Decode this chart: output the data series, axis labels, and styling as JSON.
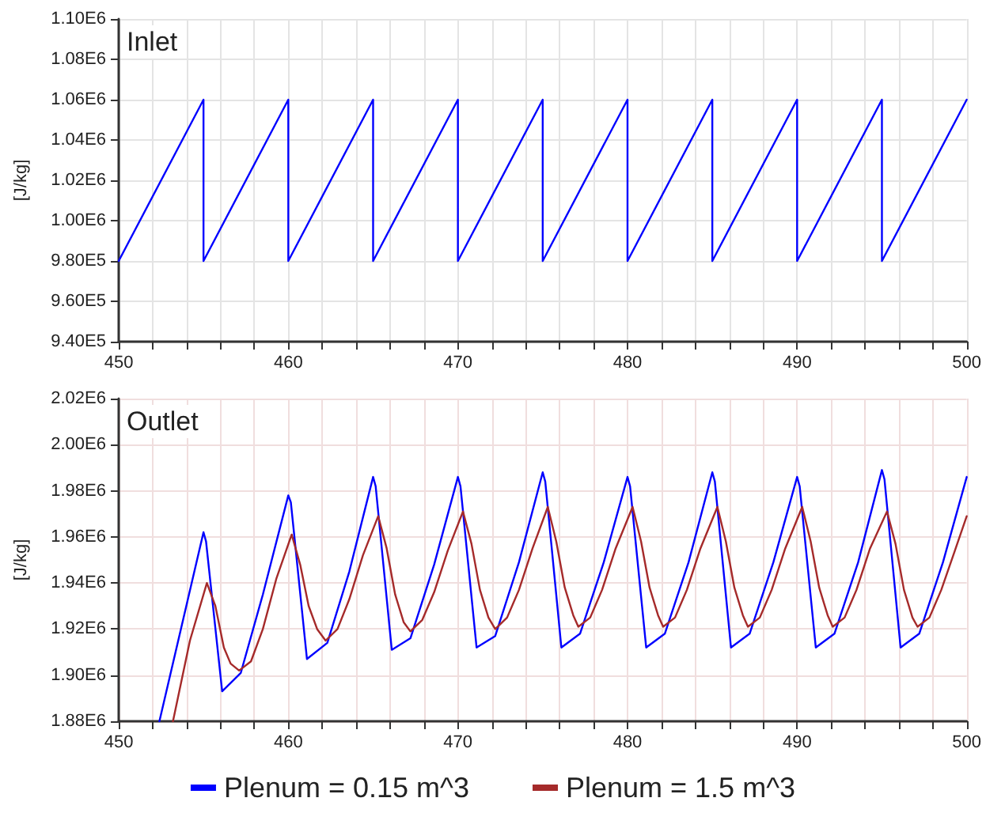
{
  "chart_data": [
    {
      "type": "line",
      "title": "Inlet",
      "ylabel": "[J/kg]",
      "xlim": [
        450,
        500
      ],
      "ylim": [
        940000,
        1100000
      ],
      "xticks": [
        450,
        {
          "value": 452,
          "label": null
        },
        {
          "value": 454,
          "label": null
        },
        {
          "value": 456,
          "label": null
        },
        {
          "value": 458,
          "label": null
        },
        460,
        {
          "value": 462,
          "label": null
        },
        {
          "value": 464,
          "label": null
        },
        {
          "value": 466,
          "label": null
        },
        {
          "value": 468,
          "label": null
        },
        470,
        {
          "value": 472,
          "label": null
        },
        {
          "value": 474,
          "label": null
        },
        {
          "value": 476,
          "label": null
        },
        {
          "value": 478,
          "label": null
        },
        480,
        {
          "value": 482,
          "label": null
        },
        {
          "value": 484,
          "label": null
        },
        {
          "value": 486,
          "label": null
        },
        {
          "value": 488,
          "label": null
        },
        490,
        {
          "value": 492,
          "label": null
        },
        {
          "value": 494,
          "label": null
        },
        {
          "value": 496,
          "label": null
        },
        {
          "value": 498,
          "label": null
        },
        500
      ],
      "yticks": [
        {
          "value": 940000,
          "label": "9.40E5"
        },
        {
          "value": 960000,
          "label": "9.60E5"
        },
        {
          "value": 980000,
          "label": "9.80E5"
        },
        {
          "value": 1000000,
          "label": "1.00E6"
        },
        {
          "value": 1020000,
          "label": "1.02E6"
        },
        {
          "value": 1040000,
          "label": "1.04E6"
        },
        {
          "value": 1060000,
          "label": "1.06E6"
        },
        {
          "value": 1080000,
          "label": "1.08E6"
        },
        {
          "value": 1100000,
          "label": "1.10E6"
        }
      ],
      "grid": true,
      "series": [
        {
          "color": "#0000ff",
          "x": [
            450,
            455,
            455,
            460,
            460,
            465,
            465,
            470,
            470,
            475,
            475,
            480,
            480,
            485,
            485,
            490,
            490,
            495,
            495,
            500
          ],
          "values": [
            980000,
            1060000,
            980000,
            1060000,
            980000,
            1060000,
            980000,
            1060000,
            980000,
            1060000,
            980000,
            1060000,
            980000,
            1060000,
            980000,
            1060000,
            980000,
            1060000,
            980000,
            1060000
          ]
        }
      ]
    },
    {
      "type": "line",
      "title": "Outlet",
      "ylabel": "[J/kg]",
      "xlim": [
        450,
        500
      ],
      "ylim": [
        1880000,
        2020000
      ],
      "xticks": [
        450,
        {
          "value": 452,
          "label": null
        },
        {
          "value": 454,
          "label": null
        },
        {
          "value": 456,
          "label": null
        },
        {
          "value": 458,
          "label": null
        },
        460,
        {
          "value": 462,
          "label": null
        },
        {
          "value": 464,
          "label": null
        },
        {
          "value": 466,
          "label": null
        },
        {
          "value": 468,
          "label": null
        },
        470,
        {
          "value": 472,
          "label": null
        },
        {
          "value": 474,
          "label": null
        },
        {
          "value": 476,
          "label": null
        },
        {
          "value": 478,
          "label": null
        },
        480,
        {
          "value": 482,
          "label": null
        },
        {
          "value": 484,
          "label": null
        },
        {
          "value": 486,
          "label": null
        },
        {
          "value": 488,
          "label": null
        },
        490,
        {
          "value": 492,
          "label": null
        },
        {
          "value": 494,
          "label": null
        },
        {
          "value": 496,
          "label": null
        },
        {
          "value": 498,
          "label": null
        },
        500
      ],
      "yticks": [
        {
          "value": 1880000,
          "label": "1.88E6"
        },
        {
          "value": 1900000,
          "label": "1.90E6"
        },
        {
          "value": 1920000,
          "label": "1.92E6"
        },
        {
          "value": 1940000,
          "label": "1.94E6"
        },
        {
          "value": 1960000,
          "label": "1.96E6"
        },
        {
          "value": 1980000,
          "label": "1.98E6"
        },
        {
          "value": 2000000,
          "label": "2.00E6"
        },
        {
          "value": 2020000,
          "label": "2.02E6"
        }
      ],
      "grid": true,
      "legend": "bottom",
      "series": [
        {
          "name": "Plenum = 0.15 m^3",
          "color": "#0000ff",
          "x": [
            452.4,
            455,
            455.15,
            456.1,
            457.2,
            458.5,
            460,
            460.15,
            461.1,
            462.3,
            463.6,
            465,
            465.15,
            466.1,
            467.2,
            468.6,
            470,
            470.15,
            471.1,
            472.2,
            473.6,
            475,
            475.15,
            476.1,
            477.2,
            478.6,
            480,
            480.15,
            481.1,
            482.2,
            483.6,
            485,
            485.15,
            486.1,
            487.2,
            488.6,
            490,
            490.15,
            491.1,
            492.2,
            493.6,
            495,
            495.15,
            496.1,
            497.2,
            498.6,
            500
          ],
          "values": [
            1880000,
            1962000,
            1958000,
            1893000,
            1901000,
            1935000,
            1978000,
            1975000,
            1907000,
            1914000,
            1945000,
            1986000,
            1982000,
            1911000,
            1916000,
            1948000,
            1986000,
            1982000,
            1912000,
            1917000,
            1949000,
            1988000,
            1984000,
            1912000,
            1918000,
            1949000,
            1986000,
            1982000,
            1912000,
            1918000,
            1949000,
            1988000,
            1984000,
            1912000,
            1918000,
            1949000,
            1986000,
            1982000,
            1912000,
            1918000,
            1949000,
            1989000,
            1985000,
            1912000,
            1918000,
            1949000,
            1986000
          ]
        },
        {
          "name": "Plenum = 1.5 m^3",
          "color": "#a52a2a",
          "x": [
            453.2,
            454.2,
            455.2,
            455.7,
            456.2,
            456.6,
            457.1,
            457.8,
            458.5,
            459.3,
            460.2,
            460.7,
            461.2,
            461.7,
            462.2,
            462.9,
            463.6,
            464.4,
            465.3,
            465.8,
            466.3,
            466.8,
            467.2,
            467.9,
            468.6,
            469.4,
            470.3,
            470.8,
            471.3,
            471.8,
            472.2,
            472.9,
            473.6,
            474.4,
            475.3,
            475.8,
            476.3,
            476.8,
            477.1,
            477.8,
            478.5,
            479.3,
            480.3,
            480.8,
            481.3,
            481.8,
            482.1,
            482.8,
            483.5,
            484.3,
            485.3,
            485.8,
            486.3,
            486.8,
            487.1,
            487.8,
            488.5,
            489.3,
            490.3,
            490.8,
            491.3,
            491.8,
            492.1,
            492.8,
            493.5,
            494.3,
            495.3,
            495.8,
            496.3,
            496.8,
            497.1,
            497.8,
            498.5,
            499.3,
            500
          ],
          "values": [
            1880000,
            1915000,
            1940000,
            1930000,
            1912000,
            1905000,
            1902000,
            1906000,
            1920000,
            1942000,
            1961000,
            1948000,
            1930000,
            1920000,
            1915000,
            1920000,
            1933000,
            1952000,
            1969000,
            1955000,
            1935000,
            1923000,
            1919000,
            1924000,
            1936000,
            1954000,
            1971000,
            1957000,
            1937000,
            1925000,
            1920000,
            1925000,
            1937000,
            1955000,
            1973000,
            1958000,
            1938000,
            1926000,
            1921000,
            1925000,
            1937000,
            1955000,
            1973000,
            1958000,
            1938000,
            1926000,
            1921000,
            1925000,
            1937000,
            1955000,
            1973000,
            1958000,
            1938000,
            1926000,
            1921000,
            1925000,
            1937000,
            1955000,
            1973000,
            1958000,
            1938000,
            1926000,
            1921000,
            1925000,
            1937000,
            1955000,
            1971000,
            1957000,
            1937000,
            1925000,
            1921000,
            1925000,
            1937000,
            1954000,
            1969000
          ]
        }
      ]
    }
  ]
}
